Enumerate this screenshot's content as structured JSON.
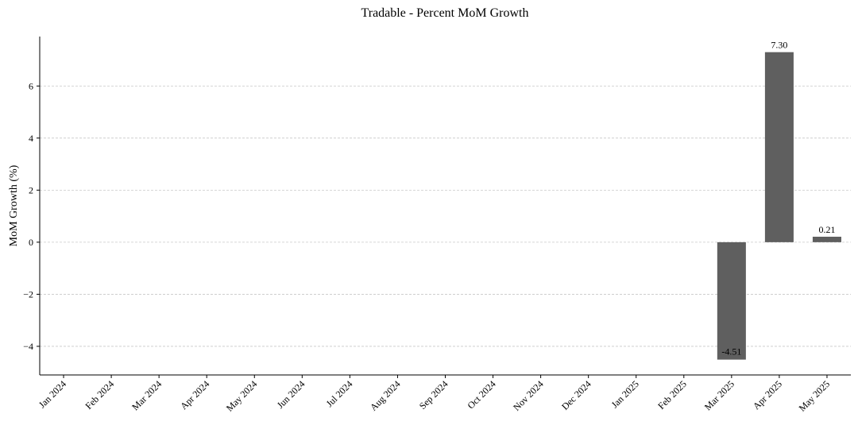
{
  "chart_data": {
    "type": "bar",
    "title": "Tradable - Percent MoM Growth",
    "y_label": "MoM Growth (%)",
    "categories": [
      "Jan 2024",
      "Feb 2024",
      "Mar 2024",
      "Apr 2024",
      "May 2024",
      "Jun 2024",
      "Jul 2024",
      "Aug 2024",
      "Sep 2024",
      "Oct 2024",
      "Nov 2024",
      "Dec 2024",
      "Jan 2025",
      "Feb 2025",
      "Mar 2025",
      "Apr 2025",
      "May 2025"
    ],
    "values": [
      null,
      null,
      null,
      null,
      null,
      null,
      null,
      null,
      null,
      null,
      null,
      null,
      null,
      null,
      -4.51,
      7.3,
      0.21
    ],
    "value_labels": [
      null,
      null,
      null,
      null,
      null,
      null,
      null,
      null,
      null,
      null,
      null,
      null,
      null,
      null,
      "-4.51",
      "7.30",
      "0.21"
    ],
    "color": "#5f5f5f",
    "ylim": [
      -5.1,
      7.9
    ],
    "yticks": [
      {
        "value": -4,
        "label": "−4"
      },
      {
        "value": -2,
        "label": "−2"
      },
      0,
      2,
      4,
      6
    ],
    "grid": true
  }
}
